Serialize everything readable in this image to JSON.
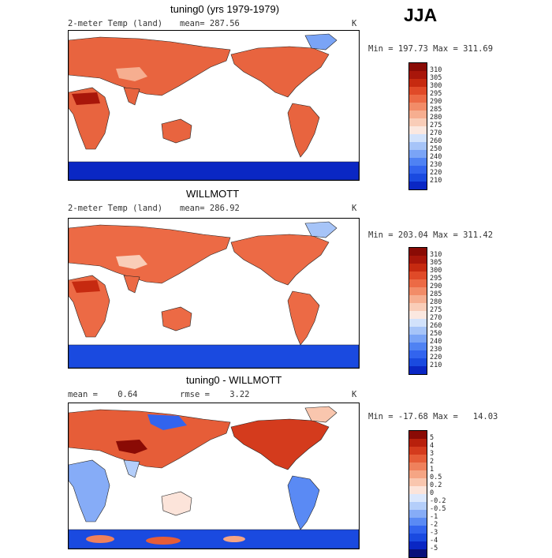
{
  "season": "JJA",
  "units": "K",
  "palette_main": [
    "#08107a",
    "#0a27c4",
    "#1a4ae0",
    "#3264ee",
    "#4f82f3",
    "#7aa4f6",
    "#a6c4f8",
    "#d2e2fb",
    "#fbe8e0",
    "#f9cdb8",
    "#f6ae90",
    "#f28c68",
    "#ec6a45",
    "#e04a28",
    "#c62a10",
    "#a8160a",
    "#8a0b05"
  ],
  "palette_diff": [
    "#08107a",
    "#0a27c4",
    "#1a4ae0",
    "#3264ee",
    "#5a8af4",
    "#86acf7",
    "#b4cefa",
    "#dbe7fc",
    "#fce4da",
    "#f9c6ae",
    "#f5a584",
    "#ef815c",
    "#e65d38",
    "#d43b1d",
    "#b8200c",
    "#8a0b05"
  ],
  "panels": [
    {
      "title": "tuning0 (yrs 1979-1979)",
      "variable": "2-meter Temp (land)",
      "stat_label": "mean= 287.56",
      "units": "K",
      "minmax": "Min = 197.73 Max = 311.69",
      "colorbar_labels": [
        "310",
        "305",
        "300",
        "295",
        "290",
        "285",
        "280",
        "275",
        "270",
        "260",
        "250",
        "240",
        "230",
        "220",
        "210"
      ]
    },
    {
      "title": "WILLMOTT",
      "variable": "2-meter Temp (land)",
      "stat_label": "mean= 286.92",
      "units": "K",
      "minmax": "Min = 203.04 Max = 311.42",
      "colorbar_labels": [
        "310",
        "305",
        "300",
        "295",
        "290",
        "285",
        "280",
        "275",
        "270",
        "260",
        "250",
        "240",
        "230",
        "220",
        "210"
      ]
    },
    {
      "title": "tuning0 - WILLMOTT",
      "variable": "mean =    0.64",
      "stat_label": "rmse =    3.22",
      "units": "K",
      "minmax": "Min = -17.68 Max =   14.03",
      "colorbar_labels": [
        "5",
        "4",
        "3",
        "2",
        "1",
        "0.5",
        "0.2",
        "0",
        "-0.2",
        "-0.5",
        "-1",
        "-2",
        "-3",
        "-4",
        "-5"
      ]
    }
  ]
}
